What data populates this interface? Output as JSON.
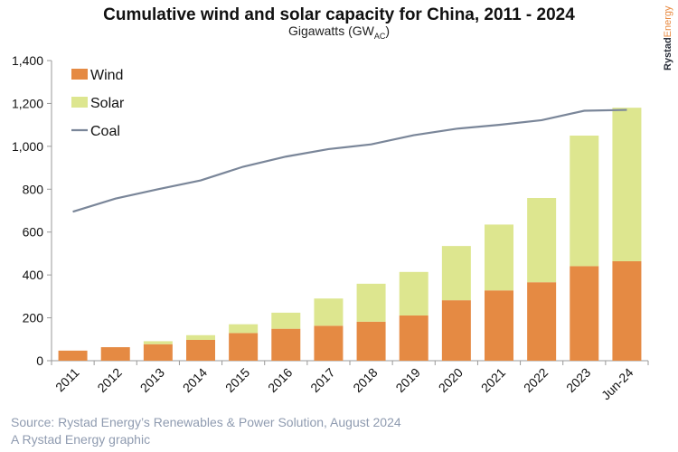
{
  "chart_data": {
    "type": "bar",
    "stacked": true,
    "title": "Cumulative wind and solar capacity for China, 2011 - 2024",
    "subtitle": "Gigawatts (GW",
    "subtitle_sub": "AC",
    "subtitle_end": ")",
    "categories": [
      "2011",
      "2012",
      "2013",
      "2014",
      "2015",
      "2016",
      "2017",
      "2018",
      "2019",
      "2020",
      "2021",
      "2022",
      "2023",
      "Jun-24"
    ],
    "series": [
      {
        "name": "Wind",
        "type": "bar",
        "color": "#e58a43",
        "values": [
          47,
          63,
          77,
          97,
          129,
          149,
          163,
          182,
          211,
          282,
          328,
          366,
          441,
          464
        ]
      },
      {
        "name": "Solar",
        "type": "bar",
        "color": "#dde68f",
        "values": [
          0,
          0,
          14,
          22,
          41,
          75,
          127,
          177,
          203,
          253,
          307,
          393,
          609,
          716
        ]
      },
      {
        "name": "Coal",
        "type": "line",
        "color": "#7a8699",
        "values": [
          695,
          756,
          800,
          841,
          905,
          952,
          987,
          1009,
          1052,
          1082,
          1100,
          1122,
          1166,
          1170
        ]
      }
    ],
    "ylim": [
      0,
      1400
    ],
    "yticks": [
      "0",
      "200",
      "400",
      "600",
      "800",
      "1,000",
      "1,200",
      "1,400"
    ],
    "grid": false,
    "legend": "top-left"
  },
  "logo": {
    "part1": "Rystad",
    "part2": "Energy"
  },
  "footer": {
    "source": "Source: Rystad Energy’s Renewables & Power Solution, August 2024",
    "credit": "A Rystad Energy graphic"
  }
}
